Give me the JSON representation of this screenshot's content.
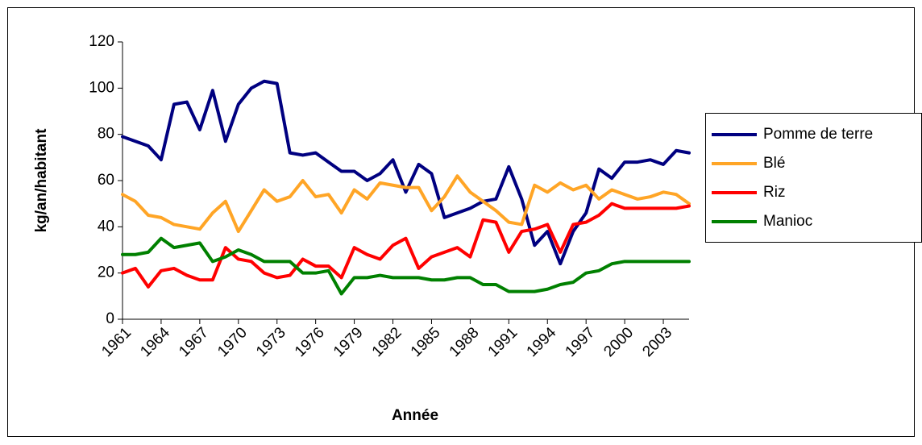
{
  "chart_data": {
    "type": "line",
    "xlabel": "Année",
    "ylabel": "kg/an/habitant",
    "x": [
      1961,
      1962,
      1963,
      1964,
      1965,
      1966,
      1967,
      1968,
      1969,
      1970,
      1971,
      1972,
      1973,
      1974,
      1975,
      1976,
      1977,
      1978,
      1979,
      1980,
      1981,
      1982,
      1983,
      1984,
      1985,
      1986,
      1987,
      1988,
      1989,
      1990,
      1991,
      1992,
      1993,
      1994,
      1995,
      1996,
      1997,
      1998,
      1999,
      2000,
      2001,
      2002,
      2003,
      2004,
      2005
    ],
    "series": [
      {
        "name": "Pomme de terre",
        "color": "#000080",
        "values": [
          79,
          77,
          75,
          69,
          93,
          94,
          82,
          99,
          77,
          93,
          100,
          103,
          102,
          72,
          71,
          72,
          68,
          64,
          64,
          60,
          63,
          69,
          55,
          67,
          63,
          44,
          46,
          48,
          51,
          52,
          66,
          52,
          32,
          38,
          24,
          38,
          46,
          65,
          61,
          68,
          68,
          69,
          67,
          73,
          72
        ]
      },
      {
        "name": "Blé",
        "color": "#ffa526",
        "values": [
          54,
          51,
          45,
          44,
          41,
          40,
          39,
          46,
          51,
          38,
          47,
          56,
          51,
          53,
          60,
          53,
          54,
          46,
          56,
          52,
          59,
          58,
          57,
          57,
          47,
          53,
          62,
          55,
          51,
          47,
          42,
          41,
          58,
          55,
          59,
          56,
          58,
          52,
          56,
          54,
          52,
          53,
          55,
          54,
          50
        ]
      },
      {
        "name": "Riz",
        "color": "#ff0000",
        "values": [
          20,
          22,
          14,
          21,
          22,
          19,
          17,
          17,
          31,
          26,
          25,
          20,
          18,
          19,
          26,
          23,
          23,
          18,
          31,
          28,
          26,
          32,
          35,
          22,
          27,
          29,
          31,
          27,
          43,
          42,
          29,
          38,
          39,
          41,
          29,
          41,
          42,
          45,
          50,
          48,
          48,
          48,
          48,
          48,
          49
        ]
      },
      {
        "name": "Manioc",
        "color": "#008000",
        "values": [
          28,
          28,
          29,
          35,
          31,
          32,
          33,
          25,
          27,
          30,
          28,
          25,
          25,
          25,
          20,
          20,
          21,
          11,
          18,
          18,
          19,
          18,
          18,
          18,
          17,
          17,
          18,
          18,
          15,
          15,
          12,
          12,
          12,
          13,
          15,
          16,
          20,
          21,
          24,
          25,
          25,
          25,
          25,
          25,
          25
        ]
      }
    ],
    "xlim": [
      1961,
      2005
    ],
    "xticks": [
      1961,
      1964,
      1967,
      1970,
      1973,
      1976,
      1979,
      1982,
      1985,
      1988,
      1991,
      1994,
      1997,
      2000,
      2003
    ],
    "ylim": [
      0,
      120
    ],
    "yticks": [
      0,
      20,
      40,
      60,
      80,
      100,
      120
    ],
    "grid": false,
    "legend": "right"
  }
}
